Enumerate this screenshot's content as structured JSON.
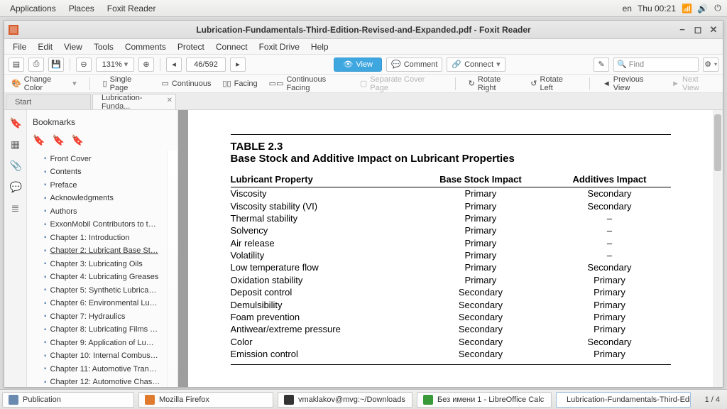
{
  "topPanel": {
    "apps": "Applications",
    "places": "Places",
    "active": "Foxit Reader",
    "lang": "en",
    "clock": "Thu 00:21"
  },
  "window": {
    "title": "Lubrication-Fundamentals-Third-Edition-Revised-and-Expanded.pdf - Foxit Reader"
  },
  "menu": [
    "File",
    "Edit",
    "View",
    "Tools",
    "Comments",
    "Protect",
    "Connect",
    "Foxit Drive",
    "Help"
  ],
  "toolbar1": {
    "zoom": "131%",
    "page": "46/592",
    "view": "View",
    "comment": "Comment",
    "connect": "Connect",
    "find": "Find"
  },
  "toolbar2": {
    "changeColor": "Change Color",
    "singlePage": "Single Page",
    "continuous": "Continuous",
    "facing": "Facing",
    "contFacing": "Continuous Facing",
    "sepCover": "Separate Cover Page",
    "rotRight": "Rotate Right",
    "rotLeft": "Rotate Left",
    "prevView": "Previous View",
    "nextView": "Next View"
  },
  "tabs": {
    "start": "Start",
    "doc": "Lubrication-Funda..."
  },
  "sidebar": {
    "title": "Bookmarks",
    "items": [
      "Front Cover",
      "Contents",
      "Preface",
      "Acknowledgments",
      "Authors",
      "ExxonMobil Contributors to t…",
      "Chapter 1: Introduction",
      "Chapter 2: Lubricant Base St…",
      "Chapter 3: Lubricating Oils",
      "Chapter 4: Lubricating Greases",
      "Chapter 5: Synthetic Lubrica…",
      "Chapter 6: Environmental Lu…",
      "Chapter 7: Hydraulics",
      "Chapter 8: Lubricating Films …",
      "Chapter 9: Application of Lu…",
      "Chapter 10: Internal Combus…",
      "Chapter 11: Automotive Tran…",
      "Chapter 12: Automotive Chas…"
    ],
    "currentIndex": 7
  },
  "doc": {
    "tableLabel": "TABLE 2.3",
    "tableTitle": "Base Stock and Additive Impact on Lubricant Properties",
    "headers": [
      "Lubricant Property",
      "Base Stock Impact",
      "Additives Impact"
    ],
    "rows": [
      [
        "Viscosity",
        "Primary",
        "Secondary"
      ],
      [
        "Viscosity stability (VI)",
        "Primary",
        "Secondary"
      ],
      [
        "Thermal stability",
        "Primary",
        "–"
      ],
      [
        "Solvency",
        "Primary",
        "–"
      ],
      [
        "Air release",
        "Primary",
        "–"
      ],
      [
        "Volatility",
        "Primary",
        "–"
      ],
      [
        "Low temperature flow",
        "Primary",
        "Secondary"
      ],
      [
        "Oxidation stability",
        "Primary",
        "Primary"
      ],
      [
        "Deposit control",
        "Secondary",
        "Primary"
      ],
      [
        "Demulsibility",
        "Secondary",
        "Primary"
      ],
      [
        "Foam prevention",
        "Secondary",
        "Primary"
      ],
      [
        "Antiwear/extreme pressure",
        "Secondary",
        "Primary"
      ],
      [
        "Color",
        "Secondary",
        "Secondary"
      ],
      [
        "Emission control",
        "Secondary",
        "Primary"
      ]
    ]
  },
  "taskbar": {
    "tasks": [
      {
        "label": "Publication",
        "color": "#6b8ab0"
      },
      {
        "label": "Mozilla Firefox",
        "color": "#e07a2c"
      },
      {
        "label": "vmaklakov@mvg:~/Downloads",
        "color": "#333"
      },
      {
        "label": "Без имени 1 - LibreOffice Calc",
        "color": "#3a9a3a"
      },
      {
        "label": "Lubrication-Fundamentals-Third-Edi…",
        "color": "#e07a2c"
      }
    ],
    "activeIndex": 4,
    "right": "1 / 4"
  }
}
